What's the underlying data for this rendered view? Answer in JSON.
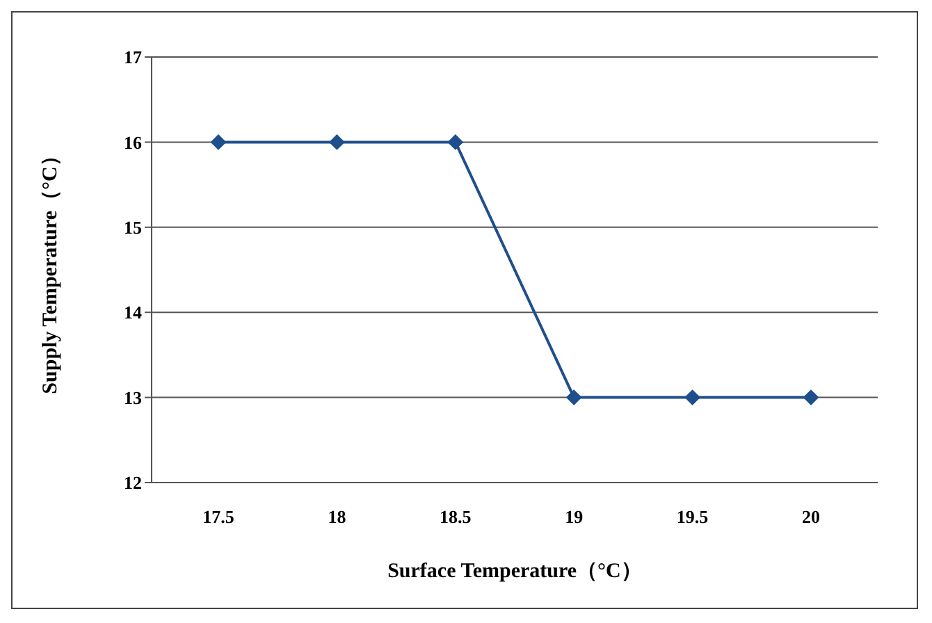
{
  "chart_data": {
    "type": "line",
    "xlabel": "Surface Temperature（°C）",
    "ylabel": "Supply Temperature（°C）",
    "categories": [
      "17.5",
      "18",
      "18.5",
      "19",
      "19.5",
      "20"
    ],
    "series": [
      {
        "color": "#1f4e8c",
        "values": [
          16,
          16,
          16,
          13,
          13,
          13
        ]
      }
    ],
    "ylim": [
      12,
      17
    ],
    "yticks": [
      12,
      13,
      14,
      15,
      16,
      17
    ],
    "grid": "y",
    "legend": false,
    "marker": "diamond",
    "line_style": "solid"
  }
}
